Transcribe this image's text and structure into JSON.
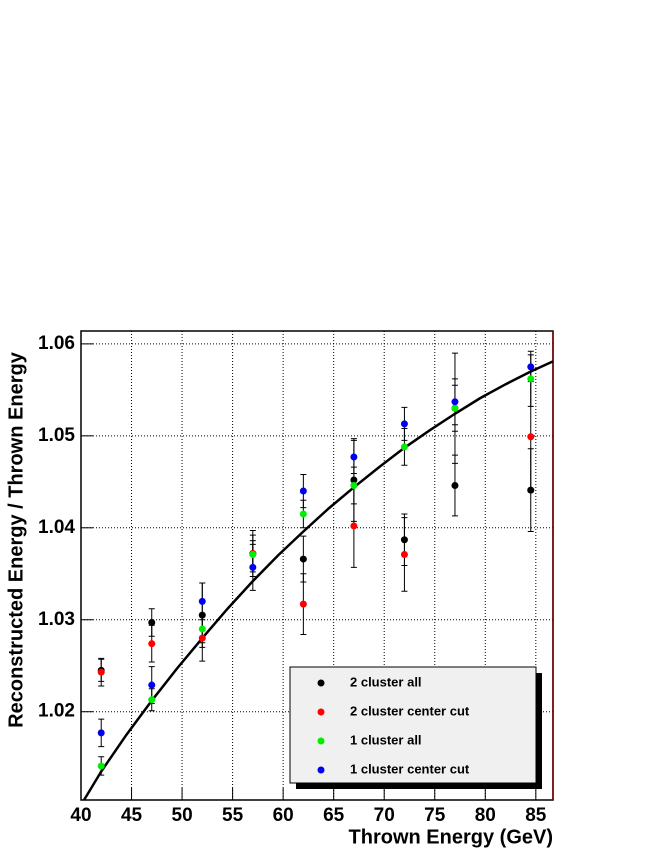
{
  "chart_data": {
    "type": "scatter",
    "xlabel": "Thrown Energy (GeV)",
    "ylabel": "Reconstructed Energy / Thrown Energy",
    "x": [
      42,
      47,
      52,
      57,
      62,
      67,
      72,
      77,
      84.5
    ],
    "xlim": [
      40,
      86.7
    ],
    "xticks": [
      40,
      45,
      50,
      55,
      60,
      65,
      70,
      75,
      80,
      85
    ],
    "ylim": [
      1.0104,
      1.0614
    ],
    "yticks": [
      1.02,
      1.03,
      1.04,
      1.05,
      1.06
    ],
    "grid": true,
    "legend": "lower right",
    "series": [
      {
        "name": "2 cluster all",
        "color": "#000000",
        "values": [
          1.0245,
          1.0297,
          1.0305,
          1.0372,
          1.0366,
          1.0452,
          1.0387,
          1.0446,
          1.0441
        ],
        "errors": [
          0.0012,
          0.0015,
          0.0035,
          0.0025,
          0.0025,
          0.0045,
          0.0028,
          0.0033,
          0.0045
        ]
      },
      {
        "name": "2 cluster center cut",
        "color": "#ff0000",
        "values": [
          1.0243,
          1.0274,
          1.028,
          1.0372,
          1.0317,
          1.0402,
          1.0371,
          1.053,
          1.0499
        ],
        "errors": [
          0.0015,
          0.002,
          0.0025,
          0.002,
          0.0033,
          0.0045,
          0.004,
          0.006,
          0.006
        ]
      },
      {
        "name": "1 cluster all",
        "color": "#00ee00",
        "values": [
          1.0141,
          1.0213,
          1.029,
          1.0371,
          1.0415,
          1.0446,
          1.0488,
          1.053,
          1.0562
        ],
        "errors": [
          0.001,
          0.0012,
          0.0015,
          0.0015,
          0.0015,
          0.002,
          0.002,
          0.0025,
          0.003
        ]
      },
      {
        "name": "1 cluster center cut",
        "color": "#0000ee",
        "values": [
          1.0177,
          1.0229,
          1.032,
          1.0357,
          1.044,
          1.0477,
          1.0513,
          1.0537,
          1.0575
        ],
        "errors": [
          0.0015,
          0.002,
          0.002,
          0.0025,
          0.0018,
          0.0018,
          0.0018,
          0.0025,
          0.0013
        ]
      }
    ],
    "curve": {
      "color": "#000000",
      "x": [
        40.3,
        42,
        44.5,
        47,
        49.5,
        52,
        54.5,
        57,
        59.5,
        62,
        64.5,
        67,
        69.5,
        72,
        74.5,
        77,
        79.5,
        82,
        84.5,
        86.7
      ],
      "values": [
        1.0104,
        1.0135,
        1.0175,
        1.0212,
        1.0247,
        1.028,
        1.0312,
        1.0342,
        1.037,
        1.0396,
        1.0421,
        1.0444,
        1.0466,
        1.0487,
        1.0506,
        1.0524,
        1.0541,
        1.0556,
        1.057,
        1.0581
      ]
    }
  }
}
